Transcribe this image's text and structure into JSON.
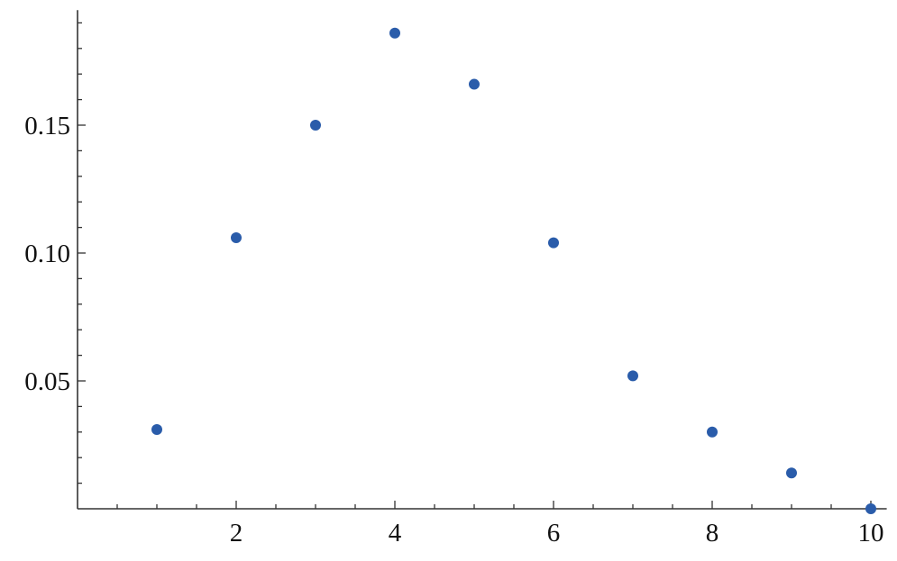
{
  "chart_data": {
    "type": "scatter",
    "title": "",
    "xlabel": "",
    "ylabel": "",
    "x": [
      1,
      2,
      3,
      4,
      5,
      6,
      7,
      8,
      9,
      10
    ],
    "y": [
      0.031,
      0.106,
      0.15,
      0.186,
      0.166,
      0.104,
      0.052,
      0.03,
      0.014,
      0.0
    ],
    "xlim": [
      0,
      10.2
    ],
    "ylim": [
      0,
      0.195
    ],
    "x_ticks": [
      2,
      4,
      6,
      8,
      10
    ],
    "x_tick_labels": [
      "2",
      "4",
      "6",
      "8",
      "10"
    ],
    "y_ticks": [
      0.05,
      0.1,
      0.15
    ],
    "y_tick_labels": [
      "0.05",
      "0.10",
      "0.15"
    ],
    "grid": false,
    "marker_color": "#2a5caa",
    "axis_color": "#333333"
  }
}
